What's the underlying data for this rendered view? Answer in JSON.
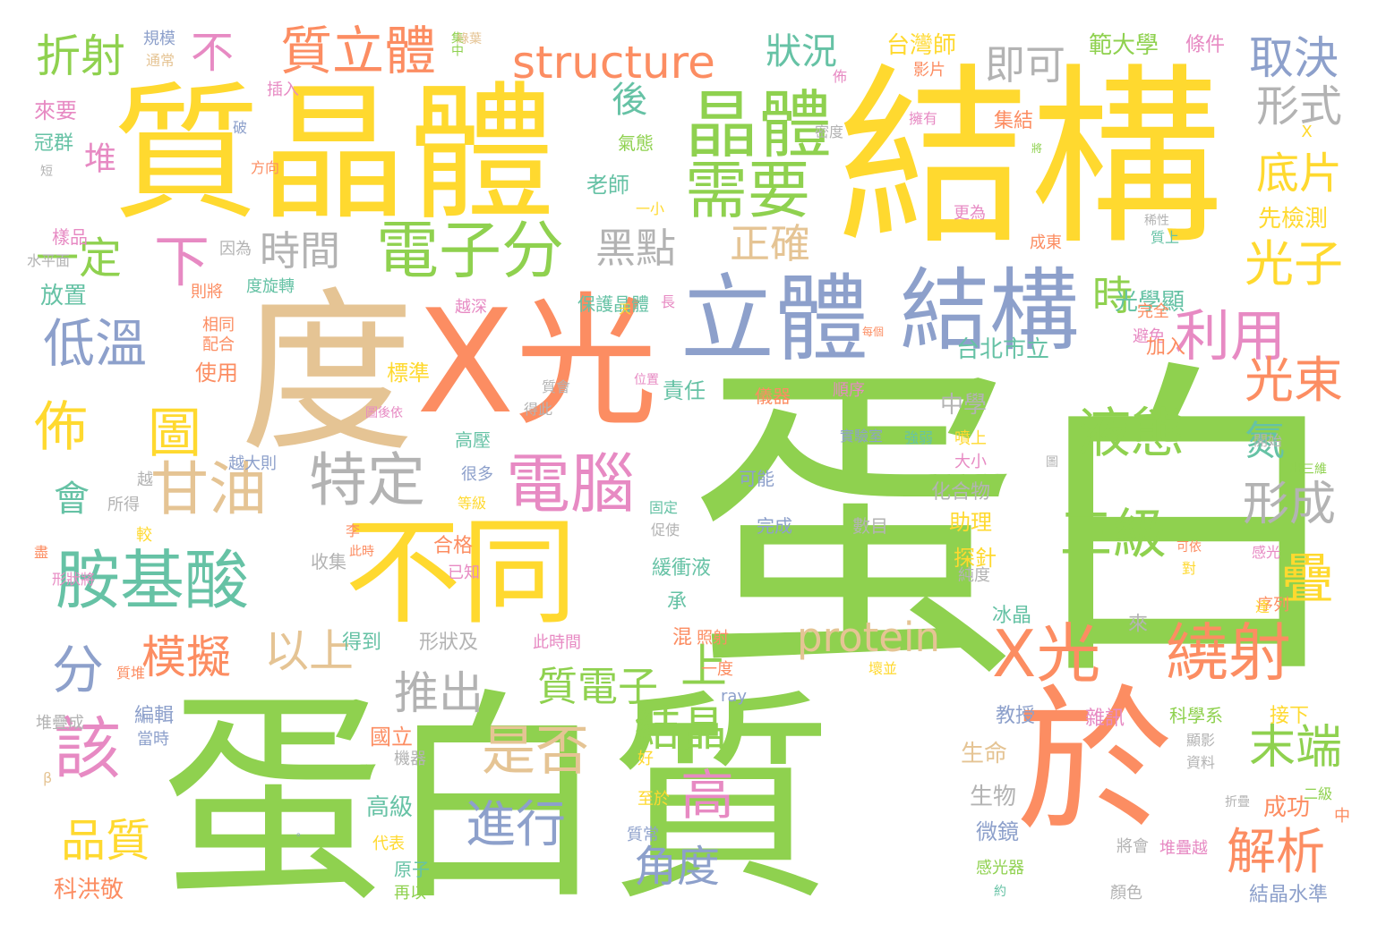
{
  "palette": {
    "green": "#8fd14f",
    "yellow": "#ffd92f",
    "orange": "#fc8d62",
    "blue": "#8da0cb",
    "tan": "#e5c494",
    "gray": "#b3b3b3",
    "pink": "#e78ac3",
    "teal": "#66c2a5"
  },
  "words": [
    {
      "text": "蛋白",
      "color": "green"
    },
    {
      "text": "蛋白質",
      "color": "green"
    },
    {
      "text": "結構",
      "color": "yellow"
    },
    {
      "text": "質晶體",
      "color": "yellow"
    },
    {
      "text": "度",
      "color": "tan"
    },
    {
      "text": "X光",
      "color": "orange"
    },
    {
      "text": "於",
      "color": "orange"
    },
    {
      "text": "不同",
      "color": "yellow"
    },
    {
      "text": "立體",
      "color": "blue"
    },
    {
      "text": "結構",
      "color": "blue"
    },
    {
      "text": "晶體",
      "color": "green"
    },
    {
      "text": "需要",
      "color": "green"
    },
    {
      "text": "電子分",
      "color": "green"
    },
    {
      "text": "胺基酸",
      "color": "teal"
    },
    {
      "text": "電腦",
      "color": "pink"
    },
    {
      "text": "特定",
      "color": "gray"
    },
    {
      "text": "甘油",
      "color": "tan"
    },
    {
      "text": "X光",
      "color": "orange"
    },
    {
      "text": "繞射",
      "color": "orange"
    },
    {
      "text": "質立體",
      "color": "orange"
    },
    {
      "text": "structure",
      "color": "orange"
    },
    {
      "text": "protein",
      "color": "tan"
    },
    {
      "text": "低溫",
      "color": "blue"
    },
    {
      "text": "佈",
      "color": "yellow"
    },
    {
      "text": "圖",
      "color": "yellow"
    },
    {
      "text": "液態",
      "color": "green"
    },
    {
      "text": "三級",
      "color": "green"
    },
    {
      "text": "是否",
      "color": "tan"
    },
    {
      "text": "進行",
      "color": "blue"
    },
    {
      "text": "高",
      "color": "pink"
    },
    {
      "text": "利用",
      "color": "pink"
    },
    {
      "text": "光子",
      "color": "yellow"
    },
    {
      "text": "光束",
      "color": "orange"
    },
    {
      "text": "取決",
      "color": "blue"
    },
    {
      "text": "形式",
      "color": "gray"
    },
    {
      "text": "底片",
      "color": "yellow"
    },
    {
      "text": "形成",
      "color": "gray"
    },
    {
      "text": "疊",
      "color": "yellow"
    },
    {
      "text": "末端",
      "color": "green"
    },
    {
      "text": "解析",
      "color": "orange"
    },
    {
      "text": "結晶",
      "color": "green"
    },
    {
      "text": "角度",
      "color": "blue"
    },
    {
      "text": "該",
      "color": "pink"
    },
    {
      "text": "品質",
      "color": "yellow"
    },
    {
      "text": "模擬",
      "color": "orange"
    },
    {
      "text": "以上",
      "color": "tan"
    },
    {
      "text": "上",
      "color": "green"
    },
    {
      "text": "推出",
      "color": "gray"
    },
    {
      "text": "質電子",
      "color": "green"
    },
    {
      "text": "時間",
      "color": "gray"
    },
    {
      "text": "黑點",
      "color": "gray"
    },
    {
      "text": "正確",
      "color": "tan"
    },
    {
      "text": "折射",
      "color": "green"
    },
    {
      "text": "不",
      "color": "pink"
    },
    {
      "text": "狀況",
      "color": "teal"
    },
    {
      "text": "即可",
      "color": "gray"
    },
    {
      "text": "後",
      "color": "teal"
    },
    {
      "text": "一定",
      "color": "green"
    },
    {
      "text": "下",
      "color": "pink"
    },
    {
      "text": "堆",
      "color": "pink"
    },
    {
      "text": "會",
      "color": "teal"
    },
    {
      "text": "分",
      "color": "blue"
    },
    {
      "text": "時",
      "color": "green"
    },
    {
      "text": "氮",
      "color": "teal"
    },
    {
      "text": "台灣師",
      "color": "yellow"
    },
    {
      "text": "範大學",
      "color": "green"
    },
    {
      "text": "條件",
      "color": "pink"
    },
    {
      "text": "台北市立",
      "color": "teal"
    },
    {
      "text": "中學",
      "color": "gray"
    },
    {
      "text": "老師",
      "color": "teal"
    },
    {
      "text": "先檢測",
      "color": "yellow"
    },
    {
      "text": "光學顯",
      "color": "teal"
    },
    {
      "text": "放置",
      "color": "teal"
    },
    {
      "text": "使用",
      "color": "orange"
    },
    {
      "text": "標準",
      "color": "yellow"
    },
    {
      "text": "責任",
      "color": "teal"
    },
    {
      "text": "高壓",
      "color": "teal"
    },
    {
      "text": "很多",
      "color": "blue"
    },
    {
      "text": "合格",
      "color": "orange"
    },
    {
      "text": "助理",
      "color": "yellow"
    },
    {
      "text": "化合物",
      "color": "gray"
    },
    {
      "text": "探針",
      "color": "yellow"
    },
    {
      "text": "冰晶",
      "color": "teal"
    },
    {
      "text": "緩衝液",
      "color": "teal"
    },
    {
      "text": "承",
      "color": "teal"
    },
    {
      "text": "混",
      "color": "orange"
    },
    {
      "text": "形狀及",
      "color": "gray"
    },
    {
      "text": "此時間",
      "color": "pink"
    },
    {
      "text": "來",
      "color": "gray"
    },
    {
      "text": "教授",
      "color": "blue"
    },
    {
      "text": "雜訊",
      "color": "pink"
    },
    {
      "text": "科學系",
      "color": "green"
    },
    {
      "text": "接下",
      "color": "yellow"
    },
    {
      "text": "國立",
      "color": "orange"
    },
    {
      "text": "生命",
      "color": "tan"
    },
    {
      "text": "生物",
      "color": "gray"
    },
    {
      "text": "微鏡",
      "color": "blue"
    },
    {
      "text": "高級",
      "color": "teal"
    },
    {
      "text": "成功",
      "color": "orange"
    },
    {
      "text": "科洪敬",
      "color": "orange"
    },
    {
      "text": "編輯",
      "color": "blue"
    },
    {
      "text": "結晶水準",
      "color": "blue"
    },
    {
      "text": "規模",
      "color": "blue"
    },
    {
      "text": "通常",
      "color": "tan"
    },
    {
      "text": "來要",
      "color": "pink"
    },
    {
      "text": "冠群",
      "color": "teal"
    },
    {
      "text": "樣品",
      "color": "pink"
    },
    {
      "text": "水平面",
      "color": "gray"
    },
    {
      "text": "集結",
      "color": "orange"
    },
    {
      "text": "集中",
      "color": "green"
    },
    {
      "text": "影片",
      "color": "orange"
    },
    {
      "text": "擁有",
      "color": "pink"
    },
    {
      "text": "密度",
      "color": "gray"
    },
    {
      "text": "氣態",
      "color": "green"
    },
    {
      "text": "一小",
      "color": "yellow"
    },
    {
      "text": "保護晶體",
      "color": "teal"
    },
    {
      "text": "度旋轉",
      "color": "teal"
    },
    {
      "text": "則將",
      "color": "orange"
    },
    {
      "text": "因為",
      "color": "gray"
    },
    {
      "text": "相同",
      "color": "orange"
    },
    {
      "text": "配合",
      "color": "orange"
    },
    {
      "text": "越深",
      "color": "pink"
    },
    {
      "text": "更為",
      "color": "pink"
    },
    {
      "text": "成東",
      "color": "orange"
    },
    {
      "text": "質上",
      "color": "teal"
    },
    {
      "text": "完全",
      "color": "orange"
    },
    {
      "text": "避免",
      "color": "pink"
    },
    {
      "text": "加入",
      "color": "orange"
    },
    {
      "text": "儀器",
      "color": "orange"
    },
    {
      "text": "順序",
      "color": "pink"
    },
    {
      "text": "實驗室",
      "color": "blue"
    },
    {
      "text": "強弱",
      "color": "teal"
    },
    {
      "text": "噴上",
      "color": "yellow"
    },
    {
      "text": "大小",
      "color": "pink"
    },
    {
      "text": "開始",
      "color": "gray"
    },
    {
      "text": "可能",
      "color": "blue"
    },
    {
      "text": "完成",
      "color": "blue"
    },
    {
      "text": "固定",
      "color": "teal"
    },
    {
      "text": "促使",
      "color": "gray"
    },
    {
      "text": "數目",
      "color": "gray"
    },
    {
      "text": "等級",
      "color": "yellow"
    },
    {
      "text": "所得",
      "color": "gray"
    },
    {
      "text": "越大則",
      "color": "blue"
    },
    {
      "text": "收集",
      "color": "gray"
    },
    {
      "text": "已知",
      "color": "pink"
    },
    {
      "text": "得到",
      "color": "teal"
    },
    {
      "text": "純度",
      "color": "gray"
    },
    {
      "text": "序列",
      "color": "orange"
    },
    {
      "text": "照射",
      "color": "orange"
    },
    {
      "text": "一度",
      "color": "orange"
    },
    {
      "text": "壞並",
      "color": "yellow"
    },
    {
      "text": "ray",
      "color": "blue"
    },
    {
      "text": "質堆",
      "color": "orange"
    },
    {
      "text": "堆疊成",
      "color": "gray"
    },
    {
      "text": "當時",
      "color": "blue"
    },
    {
      "text": "機器",
      "color": "gray"
    },
    {
      "text": "好",
      "color": "yellow"
    },
    {
      "text": "至於",
      "color": "yellow"
    },
    {
      "text": "質常",
      "color": "blue"
    },
    {
      "text": "代表",
      "color": "yellow"
    },
    {
      "text": "原子",
      "color": "teal"
    },
    {
      "text": "再以",
      "color": "green"
    },
    {
      "text": "將會",
      "color": "gray"
    },
    {
      "text": "堆疊越",
      "color": "pink"
    },
    {
      "text": "感光器",
      "color": "green"
    },
    {
      "text": "約",
      "color": "teal"
    },
    {
      "text": "顏色",
      "color": "gray"
    },
    {
      "text": "資料",
      "color": "gray"
    },
    {
      "text": "顯影",
      "color": "gray"
    },
    {
      "text": "二級",
      "color": "green"
    },
    {
      "text": "中",
      "color": "orange"
    },
    {
      "text": "折疊",
      "color": "gray"
    },
    {
      "text": "感光",
      "color": "pink"
    },
    {
      "text": "達",
      "color": "yellow"
    },
    {
      "text": "可依",
      "color": "orange"
    },
    {
      "text": "對",
      "color": "yellow"
    },
    {
      "text": "圖",
      "color": "gray"
    },
    {
      "text": "出三維",
      "color": "green"
    },
    {
      "text": "稀性",
      "color": "gray"
    },
    {
      "text": "每個",
      "color": "orange"
    },
    {
      "text": "得此",
      "color": "gray"
    },
    {
      "text": "質會",
      "color": "gray"
    },
    {
      "text": "位置",
      "color": "pink"
    },
    {
      "text": "圖後依",
      "color": "pink"
    },
    {
      "text": "較",
      "color": "yellow"
    },
    {
      "text": "此時",
      "color": "orange"
    },
    {
      "text": "李",
      "color": "orange"
    },
    {
      "text": "越",
      "color": "gray"
    },
    {
      "text": "盡",
      "color": "orange"
    },
    {
      "text": "形狀將",
      "color": "pink"
    },
    {
      "text": "β",
      "color": "tan"
    },
    {
      "text": "。",
      "color": "blue"
    },
    {
      "text": "插入",
      "color": "pink"
    },
    {
      "text": "破",
      "color": "blue"
    },
    {
      "text": "方向",
      "color": "orange"
    },
    {
      "text": "短",
      "color": "gray"
    },
    {
      "text": "佈",
      "color": "pink"
    },
    {
      "text": "天",
      "color": "yellow"
    },
    {
      "text": "長",
      "color": "pink"
    },
    {
      "text": "X",
      "color": "yellow"
    },
    {
      "text": "將",
      "color": "green"
    },
    {
      "text": "綠葉",
      "color": "tan"
    },
    {
      "text": "質中",
      "color": "green"
    }
  ]
}
